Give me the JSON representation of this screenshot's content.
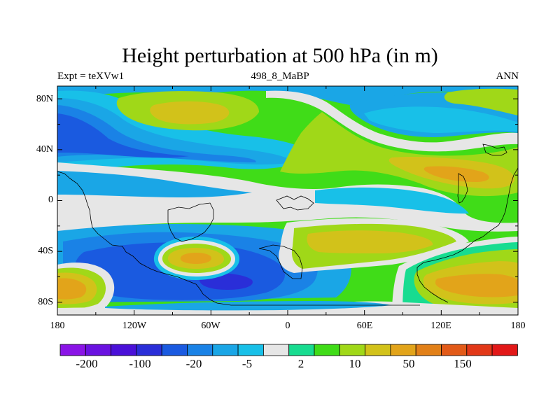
{
  "title": "Height perturbation at 500 hPa (in m)",
  "subtitle_left": "Expt = teXVw1",
  "subtitle_center": "498_8_MaBP",
  "subtitle_right": "ANN",
  "map": {
    "lon_ticks": [
      "180",
      "120W",
      "60W",
      "0",
      "60E",
      "120E",
      "180"
    ],
    "lat_ticks": [
      "80N",
      "40N",
      "0",
      "40S",
      "80S"
    ],
    "lon_range": [
      -180,
      180
    ],
    "lat_range": [
      -90,
      90
    ]
  },
  "colorbar": {
    "colors": [
      "#8a14e6",
      "#6a12e0",
      "#4a10d8",
      "#2a2ed8",
      "#1a5ae0",
      "#1a82e6",
      "#1aa6e6",
      "#18c0e8",
      "#e6e6e6",
      "#18dc90",
      "#40dc18",
      "#a0d818",
      "#d2c21a",
      "#e2a41a",
      "#e28018",
      "#e25a18",
      "#e23818",
      "#e21818"
    ],
    "labels": [
      "-200",
      "-100",
      "-20",
      "-5",
      "2",
      "10",
      "50",
      "150"
    ]
  },
  "field_colors": {
    "bg_pos_low": "#40dc18",
    "neg_deep": "#1a5ae0",
    "neg_mid": "#1a82e6",
    "neg_light": "#1aa6e6",
    "neg_pale": "#18c0e8",
    "near_zero": "#e6e6e6",
    "pos_teal": "#18dc90",
    "pos_lime": "#a0d818",
    "pos_mid": "#d2c21a",
    "pos_high": "#e2a41a",
    "neg_darker": "#2a2ed8"
  }
}
